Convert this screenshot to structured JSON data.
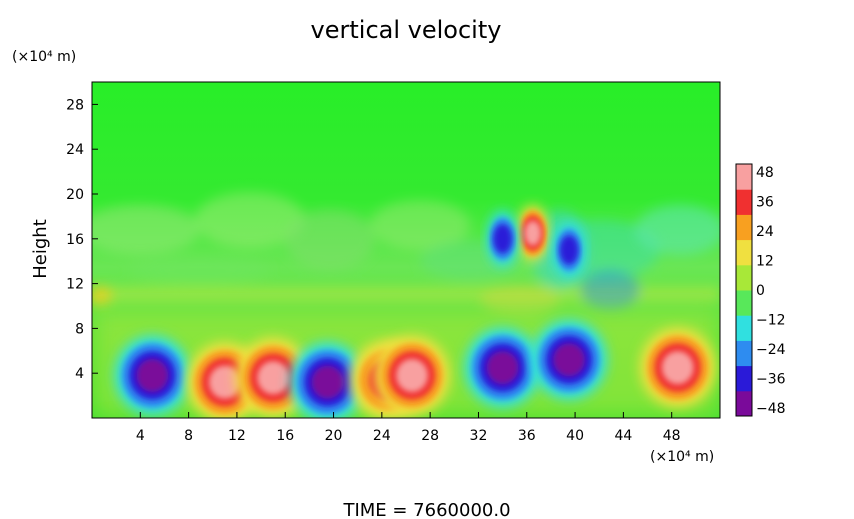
{
  "chart_data": {
    "type": "heatmap",
    "title": "vertical velocity",
    "xlabel": "",
    "ylabel": "Height",
    "x_unit": "(×10⁴ m)",
    "y_unit": "(×10⁴ m)",
    "xlim": [
      0,
      52
    ],
    "ylim": [
      0,
      30
    ],
    "x_ticks": [
      "4",
      "8",
      "12",
      "16",
      "20",
      "24",
      "28",
      "32",
      "36",
      "40",
      "44",
      "48"
    ],
    "y_ticks": [
      "4",
      "8",
      "12",
      "16",
      "20",
      "24",
      "28"
    ],
    "colorbar": {
      "range": [
        -48,
        48
      ],
      "tick_labels": [
        "48",
        "36",
        "24",
        "12",
        "0",
        "−12",
        "−24",
        "−36",
        "−48"
      ],
      "colors": [
        "#7a0a9a",
        "#2a1ad8",
        "#2e8cf0",
        "#30e0e0",
        "#58e85a",
        "#a8e838",
        "#f0e040",
        "#f8a020",
        "#f03030",
        "#f8a0a0"
      ]
    },
    "background_value": 0,
    "features": [
      {
        "x": 5,
        "y": 3.8,
        "value": -48
      },
      {
        "x": 11,
        "y": 3.2,
        "value": 40
      },
      {
        "x": 15,
        "y": 3.6,
        "value": 40
      },
      {
        "x": 19.5,
        "y": 3.2,
        "value": -48
      },
      {
        "x": 24.5,
        "y": 3.4,
        "value": 36
      },
      {
        "x": 26.5,
        "y": 3.8,
        "value": 44
      },
      {
        "x": 34,
        "y": 4.5,
        "value": -44
      },
      {
        "x": 39.5,
        "y": 5.2,
        "value": -48
      },
      {
        "x": 48.5,
        "y": 4.5,
        "value": 44
      },
      {
        "x": 36.5,
        "y": 16.5,
        "value": 44
      },
      {
        "x": 34,
        "y": 16,
        "value": -36
      },
      {
        "x": 39.5,
        "y": 15,
        "value": -36
      }
    ],
    "footer": "TIME  =  7660000.0"
  }
}
